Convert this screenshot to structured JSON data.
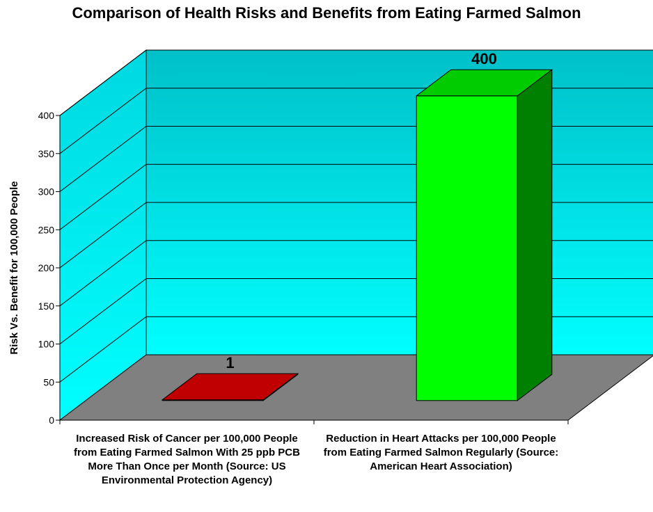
{
  "chart_data": {
    "type": "bar",
    "title": "Comparison of Health Risks and Benefits from Eating Farmed Salmon",
    "xlabel": "",
    "ylabel": "Risk Vs. Benefit for 100,000 People",
    "ylim": [
      0,
      400
    ],
    "yticks": [
      0,
      50,
      100,
      150,
      200,
      250,
      300,
      350,
      400
    ],
    "grid": true,
    "categories": [
      "Increased Risk of Cancer per 100,000 People from Eating Farmed Salmon With 25 ppb PCB More Than Once per Month (Source: US Environmental Protection Agency)",
      "Reduction in Heart Attacks per 100,000 People from Eating Farmed Salmon Regularly (Source: American Heart Association)"
    ],
    "values": [
      1,
      400
    ],
    "data_labels": [
      "1",
      "400"
    ],
    "colors": {
      "bar_fills": [
        "#c00000",
        "#00ff00"
      ],
      "bar_tops": [
        "#c00000",
        "#00cc00"
      ],
      "bar_sides": [
        "#8b0000",
        "#008000"
      ],
      "wall_top": "#00c0c8",
      "wall_bottom": "#00ffff",
      "floor": "#808080"
    }
  }
}
